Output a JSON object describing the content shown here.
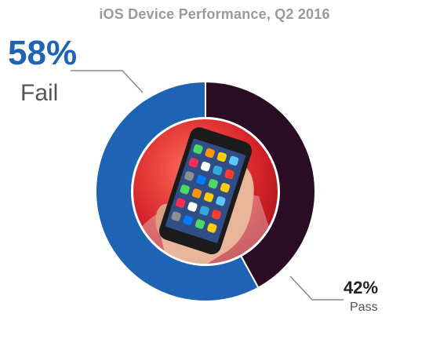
{
  "chart_data": {
    "type": "pie",
    "title": "iOS Device Performance, Q2 2016",
    "slices": [
      {
        "label": "Fail",
        "value": 58,
        "display": "58%",
        "color": "#1f64b4"
      },
      {
        "label": "Pass",
        "value": 42,
        "display": "42%",
        "color": "#2a0c24"
      }
    ],
    "legend": "none"
  },
  "colors": {
    "fail": "#1f64b4",
    "pass": "#2a0c24",
    "leader_line": "#888888",
    "center_background": "#d8262b"
  },
  "center_image": {
    "icon": "smartphone-in-hand-icon"
  }
}
